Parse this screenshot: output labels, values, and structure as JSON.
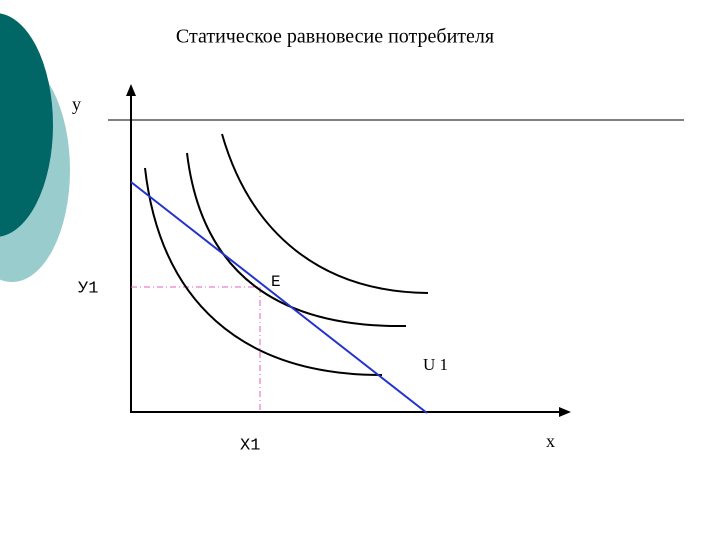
{
  "title": "Статическое  равновесие потребителя",
  "axes": {
    "y_label": "у",
    "x_label": "x",
    "y1_label": "У1",
    "x1_label": "X1"
  },
  "labels": {
    "equilibrium": "Е",
    "curve": "U 1"
  }
}
